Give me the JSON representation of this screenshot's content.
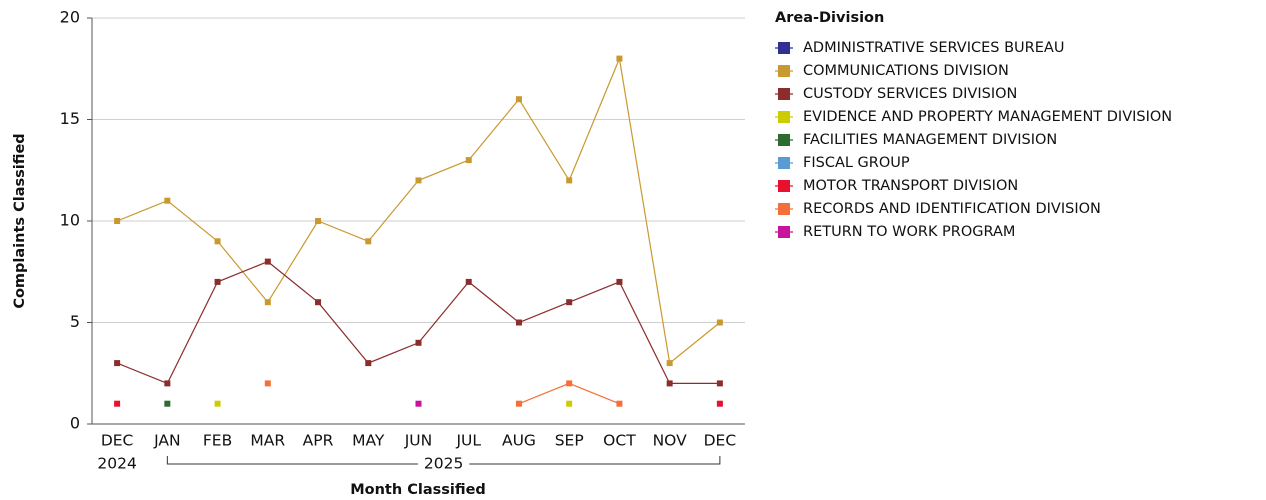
{
  "chart_data": {
    "type": "line",
    "x_label": "Month Classified",
    "y_label": "Complaints Classified",
    "legend_title": "Area-Division",
    "legend": "right",
    "grid": true,
    "categories": [
      "DEC",
      "JAN",
      "FEB",
      "MAR",
      "APR",
      "MAY",
      "JUN",
      "JUL",
      "AUG",
      "SEP",
      "OCT",
      "NOV",
      "DEC"
    ],
    "category_groups": [
      {
        "label": "2024",
        "from": 0,
        "to": 0
      },
      {
        "label": "2025",
        "from": 1,
        "to": 12
      }
    ],
    "ylim": [
      0,
      20
    ],
    "yticks": [
      0,
      5,
      10,
      15,
      20
    ],
    "series": [
      {
        "name": "ADMINISTRATIVE SERVICES BUREAU",
        "color": "#2e3192",
        "values": [
          null,
          null,
          null,
          null,
          null,
          null,
          null,
          null,
          null,
          null,
          null,
          null,
          null
        ]
      },
      {
        "name": "COMMUNICATIONS DIVISION",
        "color": "#c9992f",
        "values": [
          10,
          11,
          9,
          6,
          10,
          9,
          12,
          13,
          16,
          12,
          18,
          3,
          5
        ]
      },
      {
        "name": "CUSTODY SERVICES DIVISION",
        "color": "#8c2d2d",
        "values": [
          3,
          2,
          7,
          8,
          6,
          3,
          4,
          7,
          5,
          6,
          7,
          2,
          2
        ]
      },
      {
        "name": "EVIDENCE AND PROPERTY MANAGEMENT DIVISION",
        "color": "#cccc00",
        "values": [
          null,
          null,
          1,
          null,
          null,
          null,
          null,
          null,
          null,
          1,
          null,
          null,
          null
        ]
      },
      {
        "name": "FACILITIES MANAGEMENT DIVISION",
        "color": "#2e6b30",
        "values": [
          null,
          1,
          null,
          null,
          null,
          null,
          null,
          null,
          null,
          null,
          null,
          null,
          null
        ]
      },
      {
        "name": "FISCAL GROUP",
        "color": "#5b9bd5",
        "values": [
          null,
          null,
          null,
          null,
          null,
          null,
          null,
          null,
          null,
          null,
          null,
          null,
          null
        ]
      },
      {
        "name": "MOTOR TRANSPORT DIVISION",
        "color": "#e8102e",
        "values": [
          1,
          null,
          null,
          null,
          null,
          null,
          null,
          null,
          null,
          null,
          null,
          null,
          1
        ]
      },
      {
        "name": "RECORDS AND IDENTIFICATION DIVISION",
        "color": "#f4703a",
        "values": [
          null,
          null,
          null,
          2,
          null,
          null,
          null,
          null,
          1,
          2,
          1,
          null,
          null
        ]
      },
      {
        "name": "RETURN TO WORK PROGRAM",
        "color": "#c8139c",
        "values": [
          null,
          null,
          null,
          null,
          null,
          null,
          1,
          null,
          null,
          null,
          null,
          null,
          null
        ]
      }
    ]
  }
}
